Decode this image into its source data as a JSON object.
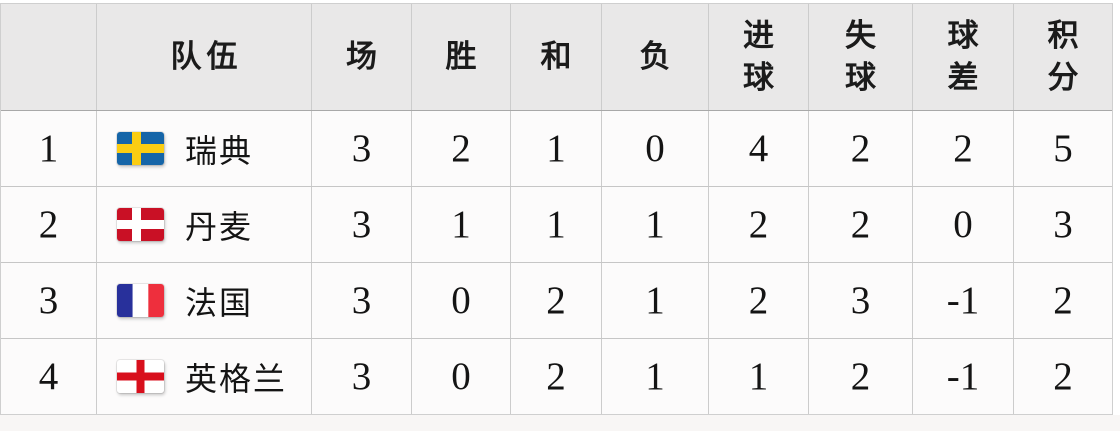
{
  "table": {
    "headers": [
      {
        "key": "rank",
        "label": "",
        "two_line": false
      },
      {
        "key": "team",
        "label": "队伍",
        "two_line": false
      },
      {
        "key": "played",
        "label": "场",
        "two_line": false
      },
      {
        "key": "won",
        "label": "胜",
        "two_line": false
      },
      {
        "key": "drawn",
        "label": "和",
        "two_line": false
      },
      {
        "key": "lost",
        "label": "负",
        "two_line": false
      },
      {
        "key": "goals_for",
        "label": "进球",
        "two_line": true
      },
      {
        "key": "goals_against",
        "label": "失球",
        "two_line": true
      },
      {
        "key": "goal_diff",
        "label": "球差",
        "two_line": true
      },
      {
        "key": "points",
        "label": "积分",
        "two_line": true
      }
    ],
    "rows": [
      {
        "rank": "1",
        "team": "瑞典",
        "flag": "sweden",
        "stats": [
          "3",
          "2",
          "1",
          "0",
          "4",
          "2",
          "2",
          "5"
        ]
      },
      {
        "rank": "2",
        "team": "丹麦",
        "flag": "denmark",
        "stats": [
          "3",
          "1",
          "1",
          "1",
          "2",
          "2",
          "0",
          "3"
        ]
      },
      {
        "rank": "3",
        "team": "法国",
        "flag": "france",
        "stats": [
          "3",
          "0",
          "2",
          "1",
          "2",
          "3",
          "-1",
          "2"
        ]
      },
      {
        "rank": "4",
        "team": "英格兰",
        "flag": "england",
        "stats": [
          "3",
          "0",
          "2",
          "1",
          "1",
          "2",
          "-1",
          "2"
        ]
      }
    ]
  },
  "flags": {
    "sweden": {
      "type": "nordic",
      "field": "#1565a8",
      "cross": "#fbcd12"
    },
    "denmark": {
      "type": "nordic",
      "field": "#c91025",
      "cross": "#ffffff"
    },
    "france": {
      "type": "vertical",
      "stripes": [
        "#28309b",
        "#ffffff",
        "#ee2f3d"
      ]
    },
    "england": {
      "type": "centercross",
      "field": "#ffffff",
      "cross": "#d80f1c"
    }
  },
  "colors": {
    "header_bg": "#e9e8e8",
    "row_bg": "#fcfbfb",
    "grid_line": "#cccccc",
    "header_border": "#a8a8a8",
    "text": "#1a1a1a"
  }
}
